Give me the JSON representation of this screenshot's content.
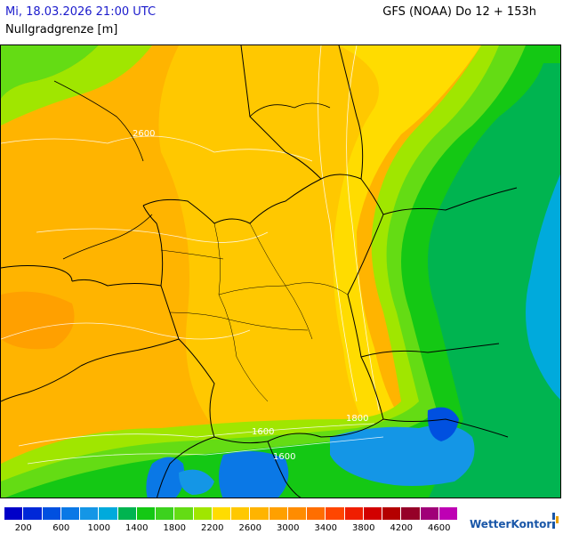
{
  "header": {
    "datetime": "Mi, 18.03.2026 21:00 UTC",
    "variable": "Nullgradgrenze [m]",
    "model_run": "GFS (NOAA) Do 12 + 153h"
  },
  "contour_labels": [
    "2600",
    "1800",
    "1600",
    "1600"
  ],
  "legend": {
    "colors": [
      "#0000c8",
      "#0028d8",
      "#0050e0",
      "#0a78e6",
      "#1496e6",
      "#00aadc",
      "#00b450",
      "#14c814",
      "#3cd21e",
      "#64dc14",
      "#a0e600",
      "#ffdc00",
      "#ffc800",
      "#ffb400",
      "#ffa000",
      "#ff8c00",
      "#ff6e00",
      "#ff4600",
      "#f01e00",
      "#d20000",
      "#b40000",
      "#960028",
      "#a00078",
      "#be00b4"
    ],
    "ticks": [
      "200",
      "600",
      "1000",
      "1400",
      "1800",
      "2200",
      "2600",
      "3000",
      "3400",
      "3800",
      "4200",
      "4600"
    ]
  },
  "brand": {
    "name": "WetterKontor"
  }
}
